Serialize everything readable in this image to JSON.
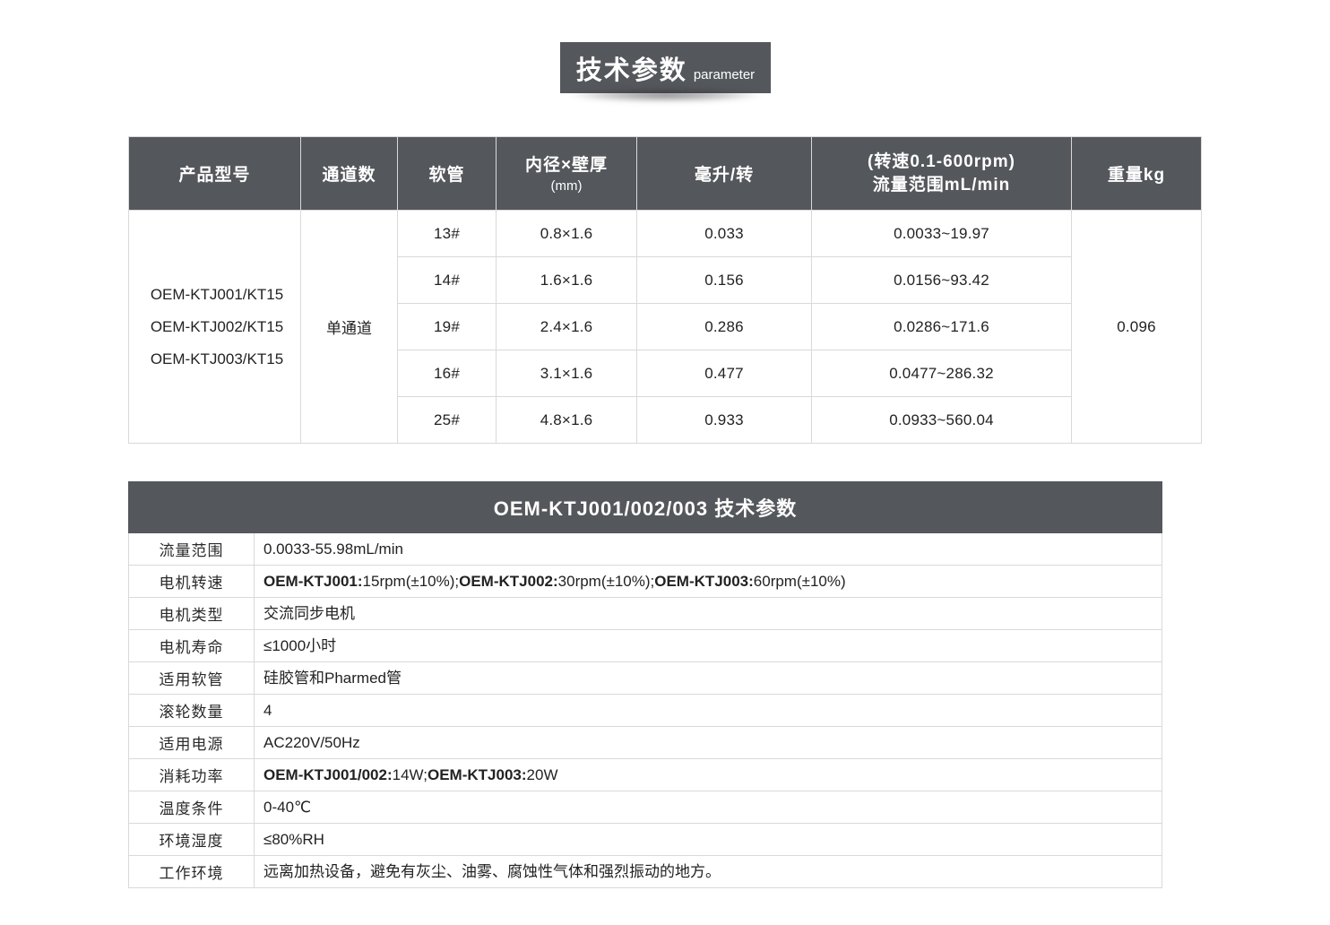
{
  "badge": {
    "title_cn": "技术参数",
    "title_en": "parameter"
  },
  "colors": {
    "header_bg": "#54575b",
    "border": "#d9d9d9",
    "text": "#222222"
  },
  "spec_table": {
    "headers": {
      "product_model": "产品型号",
      "channels": "通道数",
      "tube": "软管",
      "id_wall_line1": "内径×壁厚",
      "id_wall_line2": "(mm)",
      "ml_per_rev": "毫升/转",
      "flow_line1": "(转速0.1-600rpm)",
      "flow_line2": "流量范围mL/min",
      "weight": "重量kg"
    },
    "models": [
      "OEM-KTJ001/KT15",
      "OEM-KTJ002/KT15",
      "OEM-KTJ003/KT15"
    ],
    "channel": "单通道",
    "weight": "0.096",
    "rows": [
      {
        "tube": "13#",
        "size": "0.8×1.6",
        "ml_per_rev": "0.033",
        "flow_range": "0.0033~19.97"
      },
      {
        "tube": "14#",
        "size": "1.6×1.6",
        "ml_per_rev": "0.156",
        "flow_range": "0.0156~93.42"
      },
      {
        "tube": "19#",
        "size": "2.4×1.6",
        "ml_per_rev": "0.286",
        "flow_range": "0.0286~171.6"
      },
      {
        "tube": "16#",
        "size": "3.1×1.6",
        "ml_per_rev": "0.477",
        "flow_range": "0.0477~286.32"
      },
      {
        "tube": "25#",
        "size": "4.8×1.6",
        "ml_per_rev": "0.933",
        "flow_range": "0.0933~560.04"
      }
    ]
  },
  "detail_table": {
    "title": "OEM-KTJ001/002/003 技术参数",
    "rows": [
      {
        "label": "流量范围",
        "value": [
          {
            "text": "0.0033-55.98mL/min",
            "bold": false
          }
        ]
      },
      {
        "label": "电机转速",
        "value": [
          {
            "text": "OEM-KTJ001:",
            "bold": true
          },
          {
            "text": " 15rpm(±10%); ",
            "bold": false
          },
          {
            "text": "OEM-KTJ002:",
            "bold": true
          },
          {
            "text": " 30rpm(±10%); ",
            "bold": false
          },
          {
            "text": "OEM-KTJ003:",
            "bold": true
          },
          {
            "text": " 60rpm(±10%)",
            "bold": false
          }
        ]
      },
      {
        "label": "电机类型",
        "value": [
          {
            "text": "交流同步电机",
            "bold": false
          }
        ]
      },
      {
        "label": "电机寿命",
        "value": [
          {
            "text": "≤1000小时",
            "bold": false
          }
        ]
      },
      {
        "label": "适用软管",
        "value": [
          {
            "text": "硅胶管和Pharmed管",
            "bold": false
          }
        ]
      },
      {
        "label": "滚轮数量",
        "value": [
          {
            "text": "4",
            "bold": false
          }
        ]
      },
      {
        "label": "适用电源",
        "value": [
          {
            "text": "AC220V/50Hz",
            "bold": false
          }
        ]
      },
      {
        "label": "消耗功率",
        "value": [
          {
            "text": "OEM-KTJ001/002:",
            "bold": true
          },
          {
            "text": " 14W; ",
            "bold": false
          },
          {
            "text": "OEM-KTJ003:",
            "bold": true
          },
          {
            "text": " 20W",
            "bold": false
          }
        ]
      },
      {
        "label": "温度条件",
        "value": [
          {
            "text": "0-40℃",
            "bold": false
          }
        ]
      },
      {
        "label": "环境湿度",
        "value": [
          {
            "text": "≤80%RH",
            "bold": false
          }
        ]
      },
      {
        "label": "工作环境",
        "value": [
          {
            "text": "远离加热设备，避免有灰尘、油雾、腐蚀性气体和强烈振动的地方。",
            "bold": false
          }
        ]
      }
    ]
  }
}
